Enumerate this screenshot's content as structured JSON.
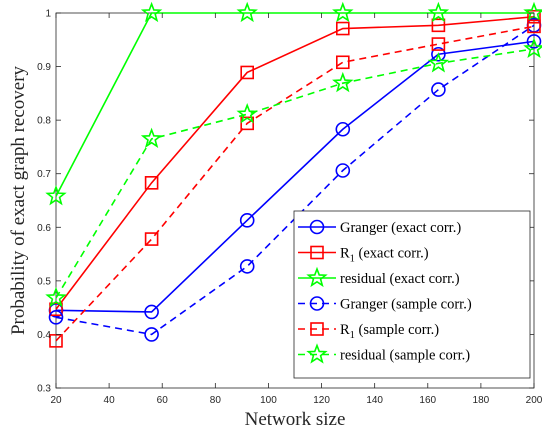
{
  "chart_data": {
    "type": "line",
    "title": "",
    "xlabel": "Network size",
    "ylabel": "Probability of exact graph recovery",
    "xlim": [
      20,
      200
    ],
    "ylim": [
      0.3,
      1
    ],
    "xticks": [
      20,
      40,
      60,
      80,
      100,
      120,
      140,
      160,
      180,
      200
    ],
    "yticks": [
      0.3,
      0.4,
      0.5,
      0.6,
      0.7,
      0.8,
      0.9,
      1
    ],
    "grid": false,
    "legend_position": "bottom-right",
    "series": [
      {
        "name": "Granger (exact corr.)",
        "color": "#0000ff",
        "line": "solid",
        "marker": "circle",
        "x": [
          20,
          56,
          92,
          128,
          164,
          200
        ],
        "y": [
          0.445,
          0.442,
          0.613,
          0.783,
          0.923,
          0.947
        ]
      },
      {
        "name": "R",
        "name_subscript": "1",
        "name_suffix": " (exact corr.)",
        "color": "#ff0000",
        "line": "solid",
        "marker": "square",
        "x": [
          20,
          56,
          92,
          128,
          164,
          200
        ],
        "y": [
          0.447,
          0.683,
          0.889,
          0.971,
          0.977,
          0.993
        ]
      },
      {
        "name": "residual (exact corr.)",
        "color": "#00ff00",
        "line": "solid",
        "marker": "star",
        "x": [
          20,
          56,
          92,
          128,
          164,
          200
        ],
        "y": [
          0.658,
          1.0,
          1.0,
          1.0,
          1.0,
          1.0
        ]
      },
      {
        "name": "Granger (sample corr.)",
        "color": "#0000ff",
        "line": "dashed",
        "marker": "circle",
        "x": [
          20,
          56,
          92,
          128,
          164,
          200
        ],
        "y": [
          0.432,
          0.4,
          0.527,
          0.706,
          0.857,
          0.977
        ]
      },
      {
        "name": "R",
        "name_subscript": "1",
        "name_suffix": " (sample corr.)",
        "color": "#ff0000",
        "line": "dashed",
        "marker": "square",
        "x": [
          20,
          56,
          92,
          128,
          164,
          200
        ],
        "y": [
          0.388,
          0.578,
          0.794,
          0.908,
          0.942,
          0.975
        ]
      },
      {
        "name": "residual (sample corr.)",
        "color": "#00ff00",
        "line": "dashed",
        "marker": "star",
        "x": [
          20,
          56,
          92,
          128,
          164,
          200
        ],
        "y": [
          0.468,
          0.765,
          0.811,
          0.869,
          0.906,
          0.933
        ]
      }
    ]
  }
}
